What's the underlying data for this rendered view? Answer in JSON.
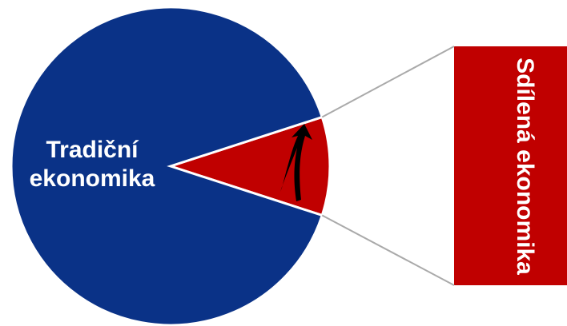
{
  "chart_data": {
    "type": "pie",
    "categories": [
      "Tradiční ekonomika",
      "Sdílená ekonomika"
    ],
    "values": [
      90,
      10
    ],
    "colors": [
      "#0a3287",
      "#c00000"
    ]
  }
}
